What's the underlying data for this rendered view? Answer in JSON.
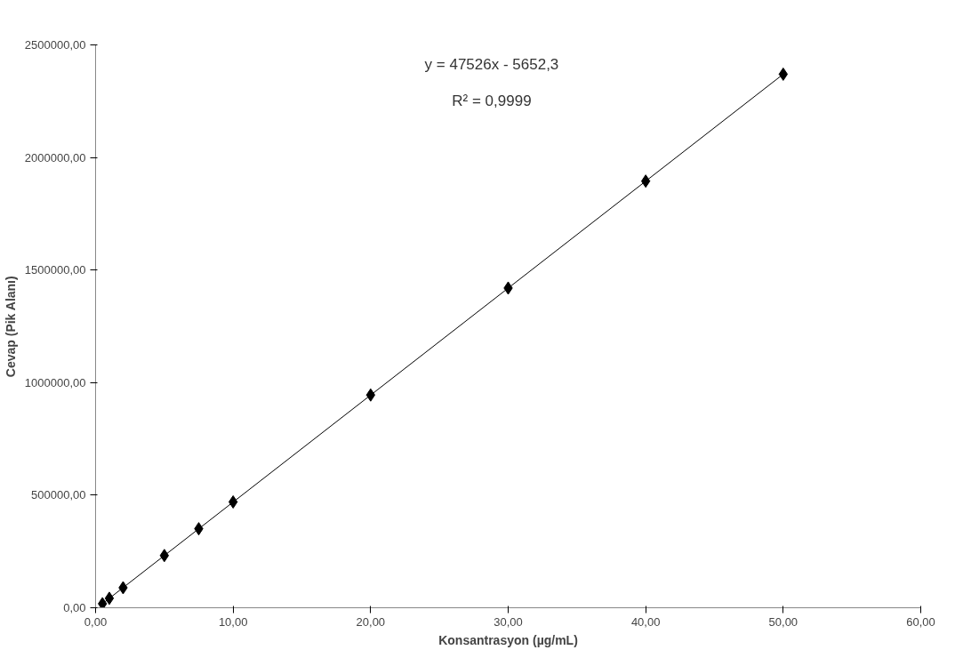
{
  "chart_data": {
    "type": "scatter",
    "xlabel": "Konsantrasyon (µg/mL)",
    "ylabel": "Cevap (Pik Alanı)",
    "annotations": [
      "y = 47526x - 5652,3",
      "R² = 0,9999"
    ],
    "xlim": [
      0,
      60
    ],
    "ylim": [
      0,
      2500000
    ],
    "xticks": [
      {
        "value": 0,
        "label": "0,00"
      },
      {
        "value": 10,
        "label": "10,00"
      },
      {
        "value": 20,
        "label": "20,00"
      },
      {
        "value": 30,
        "label": "30,00"
      },
      {
        "value": 40,
        "label": "40,00"
      },
      {
        "value": 50,
        "label": "50,00"
      },
      {
        "value": 60,
        "label": "60,00"
      }
    ],
    "yticks": [
      {
        "value": 0,
        "label": "0,00"
      },
      {
        "value": 500000,
        "label": "500000,00"
      },
      {
        "value": 1000000,
        "label": "1000000,00"
      },
      {
        "value": 1500000,
        "label": "1500000,00"
      },
      {
        "value": 2000000,
        "label": "2000000,00"
      },
      {
        "value": 2500000,
        "label": "2500000,00"
      }
    ],
    "grid": false,
    "series": [
      {
        "marker": "diamond",
        "color": "#000000",
        "x": [
          0.5,
          1,
          2,
          5,
          7.5,
          10,
          20,
          30,
          40,
          50
        ],
        "values": [
          18000,
          42000,
          89000,
          232000,
          351000,
          470000,
          945000,
          1420000,
          1895000,
          2370000
        ]
      },
      {
        "type": "line",
        "marker": "none",
        "color": "#000000",
        "x": [
          0.5,
          50
        ],
        "values": [
          18000,
          2370000
        ]
      }
    ]
  }
}
